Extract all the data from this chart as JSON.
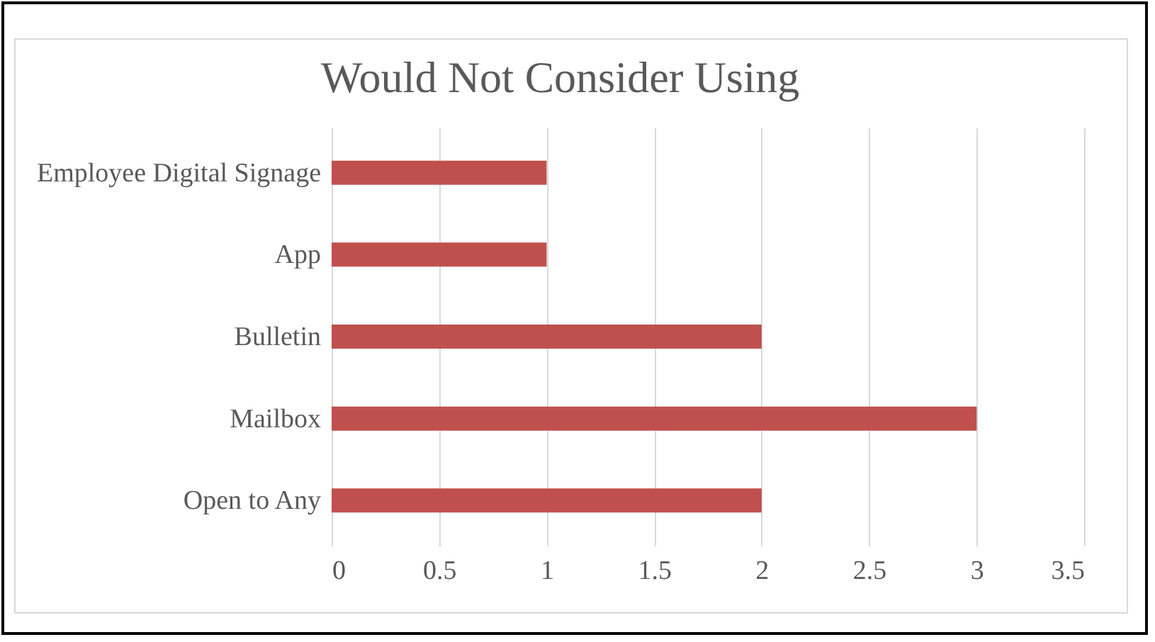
{
  "chart_data": {
    "type": "bar",
    "orientation": "horizontal",
    "title": "Would Not Consider Using",
    "categories": [
      "Employee Digital Signage",
      "App",
      "Bulletin",
      "Mailbox",
      "Open to Any"
    ],
    "values": [
      1,
      1,
      2,
      3,
      2
    ],
    "color": "#c0504d",
    "xlim": [
      0,
      3.5
    ],
    "xticks": [
      0,
      0.5,
      1,
      1.5,
      2,
      2.5,
      3,
      3.5
    ],
    "grid": "x"
  }
}
